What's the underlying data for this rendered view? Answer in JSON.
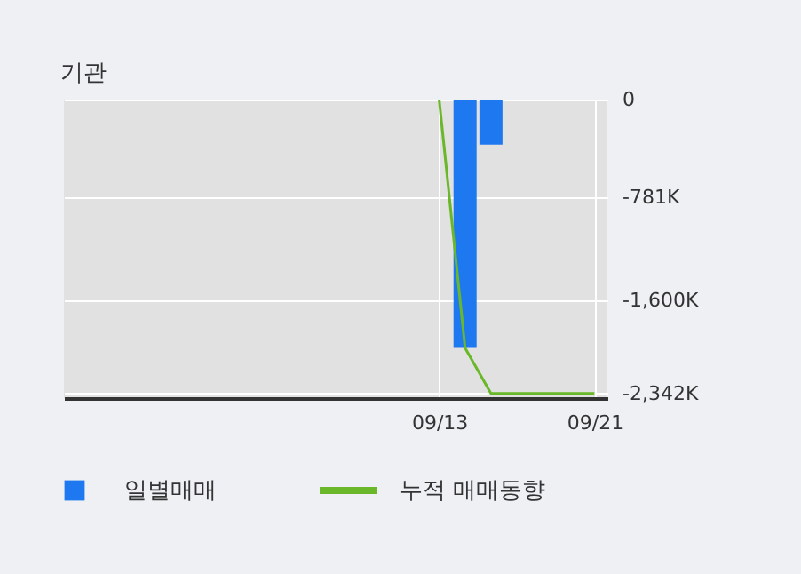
{
  "chart_data": {
    "type": "bar",
    "title": "기관",
    "categories": [
      null,
      null,
      null,
      null,
      null,
      null,
      null,
      null,
      null,
      null,
      null,
      null,
      null,
      null,
      "09/13",
      null,
      null,
      null,
      null,
      null,
      "09/21"
    ],
    "series": [
      {
        "name": "일별매매",
        "color": "#1e78f0",
        "values": [
          null,
          null,
          null,
          null,
          null,
          null,
          null,
          null,
          null,
          null,
          null,
          null,
          null,
          null,
          null,
          -1980,
          -360,
          null,
          null,
          null,
          null
        ]
      },
      {
        "name": "누적 매매동향",
        "type": "line",
        "color": "#6ab82a",
        "values": [
          null,
          null,
          null,
          null,
          null,
          null,
          null,
          null,
          null,
          null,
          null,
          null,
          null,
          null,
          0,
          -1980,
          -2342,
          -2342,
          -2342,
          -2342,
          -2342
        ]
      }
    ],
    "ylim": [
      -2380,
      0
    ],
    "yticks": [
      {
        "value": 0,
        "label": "0"
      },
      {
        "value": -781,
        "label": "-781K"
      },
      {
        "value": -1600,
        "label": "-1,600K"
      },
      {
        "value": -2342,
        "label": "-2,342K"
      }
    ],
    "grid": true,
    "legend": "bottom"
  }
}
